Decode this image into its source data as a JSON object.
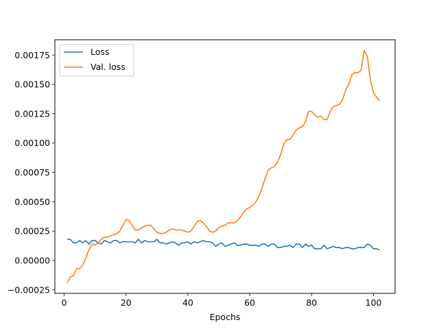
{
  "chart_data": {
    "type": "line",
    "title": "",
    "xlabel": "Epochs",
    "ylabel": "",
    "xlim": [
      -3,
      107
    ],
    "ylim": [
      -0.00028,
      0.00188
    ],
    "xticks": [
      0,
      20,
      40,
      60,
      80,
      100
    ],
    "xtick_labels": [
      "0",
      "20",
      "40",
      "60",
      "80",
      "100"
    ],
    "yticks": [
      -0.00025,
      0,
      0.00025,
      0.0005,
      0.00075,
      0.001,
      0.00125,
      0.0015,
      0.00175
    ],
    "ytick_labels": [
      "−0.00025",
      "0.00000",
      "0.00025",
      "0.00050",
      "0.00075",
      "0.00100",
      "0.00125",
      "0.00150",
      "0.00175"
    ],
    "grid": false,
    "legend": "top-left",
    "x": [
      1,
      2,
      3,
      4,
      5,
      6,
      7,
      8,
      9,
      10,
      11,
      12,
      13,
      14,
      15,
      16,
      17,
      18,
      19,
      20,
      21,
      22,
      23,
      24,
      25,
      26,
      27,
      28,
      29,
      30,
      31,
      32,
      33,
      34,
      35,
      36,
      37,
      38,
      39,
      40,
      41,
      42,
      43,
      44,
      45,
      46,
      47,
      48,
      49,
      50,
      51,
      52,
      53,
      54,
      55,
      56,
      57,
      58,
      59,
      60,
      61,
      62,
      63,
      64,
      65,
      66,
      67,
      68,
      69,
      70,
      71,
      72,
      73,
      74,
      75,
      76,
      77,
      78,
      79,
      80,
      81,
      82,
      83,
      84,
      85,
      86,
      87,
      88,
      89,
      90,
      91,
      92,
      93,
      94,
      95,
      96,
      97,
      98,
      99,
      100,
      101,
      102
    ],
    "series": [
      {
        "name": "Loss",
        "color": "#1f77b4",
        "values": [
          0.00018,
          0.00018,
          0.00015,
          0.00015,
          0.00017,
          0.00015,
          0.00017,
          0.00014,
          0.00017,
          0.00017,
          0.00015,
          0.00014,
          0.00017,
          0.00016,
          0.00015,
          0.00017,
          0.00017,
          0.00015,
          0.00016,
          0.00016,
          0.00016,
          0.00016,
          0.00015,
          0.00018,
          0.00015,
          0.00017,
          0.00016,
          0.00016,
          0.00016,
          0.00018,
          0.00015,
          0.00015,
          0.00014,
          0.00015,
          0.00016,
          0.00015,
          0.00013,
          0.00015,
          0.00015,
          0.00016,
          0.00014,
          0.00016,
          0.00015,
          0.00016,
          0.00017,
          0.00016,
          0.00016,
          0.00015,
          0.00012,
          0.00014,
          0.00015,
          0.00012,
          0.00013,
          0.00014,
          0.00015,
          0.00013,
          0.00013,
          0.00014,
          0.00014,
          0.00013,
          0.00013,
          0.00013,
          0.00012,
          0.00014,
          0.00014,
          0.00012,
          0.00014,
          0.00014,
          0.00011,
          0.00011,
          0.00012,
          0.00012,
          0.00013,
          0.00011,
          0.00014,
          0.00014,
          0.00011,
          0.00014,
          0.00012,
          0.00013,
          0.0001,
          0.0001,
          0.0001,
          0.00013,
          0.0001,
          0.00011,
          0.00012,
          0.00011,
          0.00011,
          0.0001,
          0.00011,
          0.00011,
          0.0001,
          0.0001,
          0.00011,
          0.00011,
          0.00011,
          0.00014,
          0.00013,
          0.0001,
          0.0001,
          9e-05
        ]
      },
      {
        "name": "Val. loss",
        "color": "#ff7f0e",
        "values": [
          -0.00019,
          -0.00014,
          -0.00013,
          -7e-05,
          -7e-05,
          -4e-05,
          2e-05,
          9e-05,
          0.00014,
          0.00013,
          0.00015,
          0.00018,
          0.0002,
          0.0002,
          0.00021,
          0.00022,
          0.00023,
          0.00025,
          0.0003,
          0.00035,
          0.00034,
          0.0003,
          0.00026,
          0.00026,
          0.00028,
          0.00029,
          0.0003,
          0.0003,
          0.00027,
          0.00024,
          0.00023,
          0.00023,
          0.00024,
          0.00026,
          0.00027,
          0.00026,
          0.00026,
          0.00026,
          0.00025,
          0.00024,
          0.00025,
          0.00029,
          0.00033,
          0.00034,
          0.00032,
          0.00029,
          0.00025,
          0.00024,
          0.00025,
          0.00028,
          0.00029,
          0.0003,
          0.00032,
          0.00032,
          0.00032,
          0.00034,
          0.00037,
          0.00041,
          0.00044,
          0.00045,
          0.00047,
          0.0005,
          0.00055,
          0.00062,
          0.0007,
          0.00077,
          0.00079,
          0.0008,
          0.00084,
          0.0009,
          0.00099,
          0.00103,
          0.00103,
          0.00107,
          0.00111,
          0.00113,
          0.00114,
          0.00118,
          0.00127,
          0.00127,
          0.00124,
          0.00122,
          0.00123,
          0.0012,
          0.0012,
          0.00127,
          0.00131,
          0.00132,
          0.00133,
          0.00137,
          0.00145,
          0.0015,
          0.00158,
          0.0016,
          0.0016,
          0.00162,
          0.00179,
          0.00174,
          0.00154,
          0.00143,
          0.00139,
          0.00136
        ]
      }
    ]
  }
}
